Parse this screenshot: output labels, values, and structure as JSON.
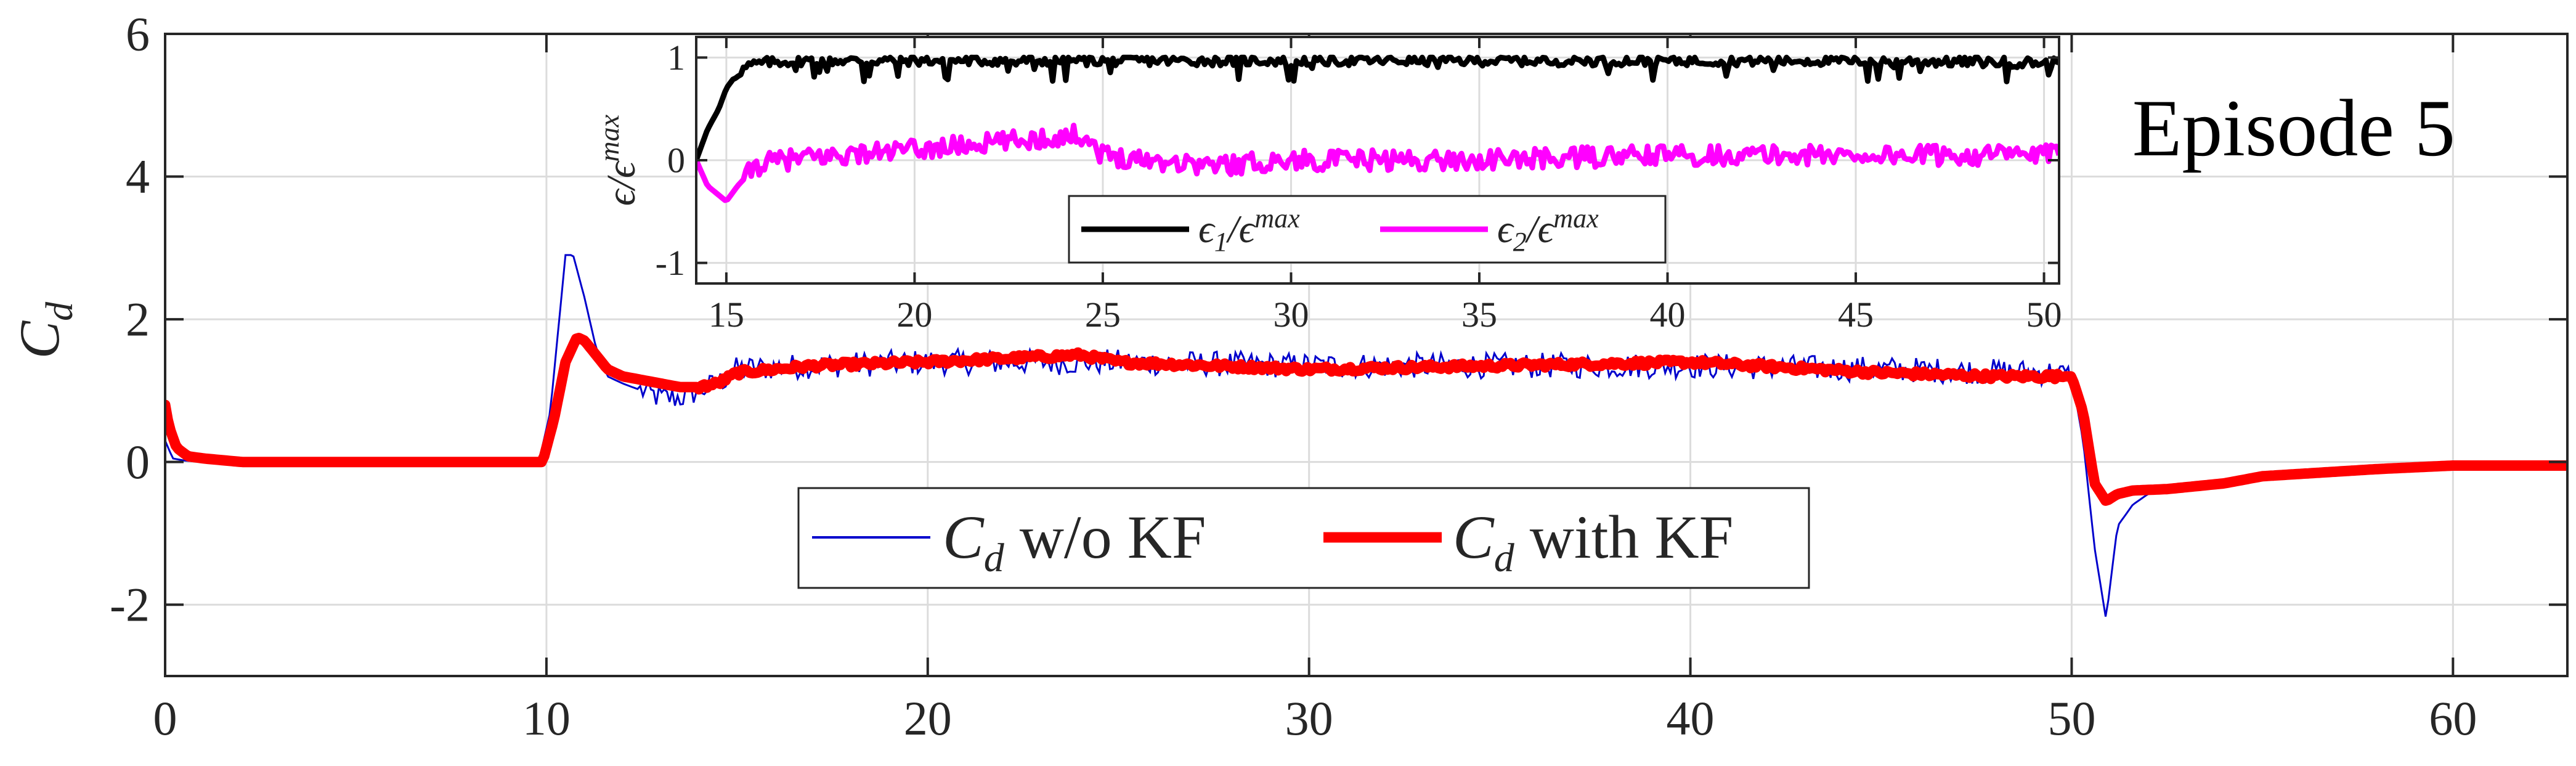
{
  "chart_data": [
    {
      "id": "main",
      "type": "line",
      "ylabel": "C_d",
      "xlabel": "",
      "xlim": [
        0,
        63
      ],
      "ylim": [
        -3,
        6
      ],
      "xticks": [
        0,
        10,
        20,
        30,
        40,
        50,
        60
      ],
      "yticks": [
        -2,
        0,
        2,
        4,
        6
      ],
      "xtick_labels": [
        "0",
        "10",
        "20",
        "30",
        "40",
        "50",
        "60"
      ],
      "ytick_labels": [
        "-2",
        "0",
        "2",
        "4",
        "6"
      ],
      "grid": true,
      "annotation": "Episode 5",
      "legend": {
        "position": "bottom-center",
        "entries": [
          "C_d w/o KF",
          "C_d with KF"
        ]
      },
      "series": [
        {
          "name": "C_d w/o KF",
          "label_main": "C",
          "label_sub": "d",
          "label_rest": " w/o KF",
          "color": "#0000cc",
          "style": "thin",
          "noise": 0.18,
          "x": [
            0,
            0.2,
            0.5,
            1,
            2,
            4,
            6,
            8,
            9.8,
            10.1,
            10.3,
            10.5,
            10.7,
            11.0,
            11.3,
            11.6,
            12.0,
            12.5,
            13.0,
            13.5,
            14.0,
            14.5,
            15,
            17,
            20,
            25,
            30,
            35,
            40,
            45,
            49.5,
            50.0,
            50.3,
            50.6,
            50.9,
            51.2,
            51.6,
            52,
            53,
            54,
            55,
            57,
            60,
            63
          ],
          "y": [
            0.3,
            0.05,
            0.02,
            0.0,
            0.0,
            0.0,
            0.0,
            0.0,
            0.0,
            0.7,
            1.8,
            2.9,
            2.9,
            2.3,
            1.6,
            1.2,
            1.1,
            1.0,
            0.9,
            0.9,
            1.0,
            1.1,
            1.3,
            1.35,
            1.4,
            1.4,
            1.35,
            1.35,
            1.35,
            1.3,
            1.25,
            1.2,
            0.3,
            -1.2,
            -2.2,
            -0.9,
            -0.6,
            -0.45,
            -0.35,
            -0.25,
            -0.15,
            -0.1,
            -0.05,
            -0.05
          ]
        },
        {
          "name": "C_d with KF",
          "label_main": "C",
          "label_sub": "d",
          "label_rest": " with KF",
          "color": "#ff0000",
          "style": "thick",
          "noise": 0.04,
          "x": [
            0,
            0.1,
            0.3,
            0.6,
            1,
            2,
            4,
            6,
            8,
            9.9,
            10.2,
            10.5,
            10.8,
            11.0,
            11.3,
            11.6,
            12.0,
            12.5,
            13.0,
            13.5,
            14.0,
            14.5,
            15,
            17,
            20,
            24,
            25,
            30,
            35,
            40,
            45,
            48,
            50.0,
            50.3,
            50.6,
            50.9,
            51.2,
            51.6,
            52.5,
            54,
            55,
            58,
            60,
            63
          ],
          "y": [
            0.8,
            0.5,
            0.2,
            0.08,
            0.05,
            0.0,
            0.0,
            0.0,
            0.0,
            0.0,
            0.6,
            1.4,
            1.75,
            1.7,
            1.5,
            1.3,
            1.2,
            1.15,
            1.1,
            1.05,
            1.05,
            1.1,
            1.25,
            1.35,
            1.4,
            1.5,
            1.4,
            1.3,
            1.35,
            1.4,
            1.25,
            1.2,
            1.2,
            0.7,
            -0.3,
            -0.55,
            -0.45,
            -0.4,
            -0.38,
            -0.3,
            -0.2,
            -0.1,
            -0.05,
            -0.05
          ]
        }
      ]
    },
    {
      "id": "inset",
      "type": "line",
      "ylabel": "ε/ε^max",
      "ylabel_main": "ϵ/ϵ",
      "ylabel_sup": "max",
      "xlabel": "",
      "xlim": [
        14.2,
        50.4
      ],
      "ylim": [
        -1.2,
        1.2
      ],
      "xticks": [
        15,
        20,
        25,
        30,
        35,
        40,
        45,
        50
      ],
      "yticks": [
        -1,
        0,
        1
      ],
      "xtick_labels": [
        "15",
        "20",
        "25",
        "30",
        "35",
        "40",
        "45",
        "50"
      ],
      "ytick_labels": [
        "-1",
        "0",
        "1"
      ],
      "grid": true,
      "legend": {
        "position": "bottom-center",
        "entries": [
          "ε_1/ε^max",
          "ε_2/ε^max"
        ]
      },
      "series": [
        {
          "name": "ε_1/ε^max",
          "label_main": "ϵ",
          "label_sub": "1",
          "label_rest": "/ϵ",
          "label_sup": "max",
          "color": "#000000",
          "noise": 0.05,
          "x": [
            14.2,
            14.5,
            14.8,
            15.0,
            15.3,
            15.6,
            16.0,
            17,
            20,
            25,
            30,
            35,
            40,
            45,
            50,
            50.4
          ],
          "y": [
            0.0,
            0.3,
            0.5,
            0.7,
            0.85,
            0.92,
            0.95,
            0.97,
            0.97,
            0.97,
            0.97,
            0.97,
            0.97,
            0.97,
            0.95,
            0.95
          ]
        },
        {
          "name": "ε_2/ε^max",
          "label_main": "ϵ",
          "label_sub": "2",
          "label_rest": "/ϵ",
          "label_sup": "max",
          "color": "#ff00ff",
          "noise": 0.1,
          "x": [
            14.2,
            14.5,
            15.0,
            15.3,
            15.8,
            16.5,
            18,
            20,
            24.5,
            25,
            28,
            30,
            35,
            40,
            45,
            50,
            50.4
          ],
          "y": [
            0.0,
            -0.25,
            -0.4,
            -0.25,
            -0.05,
            0.0,
            0.05,
            0.1,
            0.25,
            0.05,
            -0.05,
            0.0,
            0.0,
            0.05,
            0.05,
            0.05,
            0.05
          ]
        }
      ]
    }
  ]
}
